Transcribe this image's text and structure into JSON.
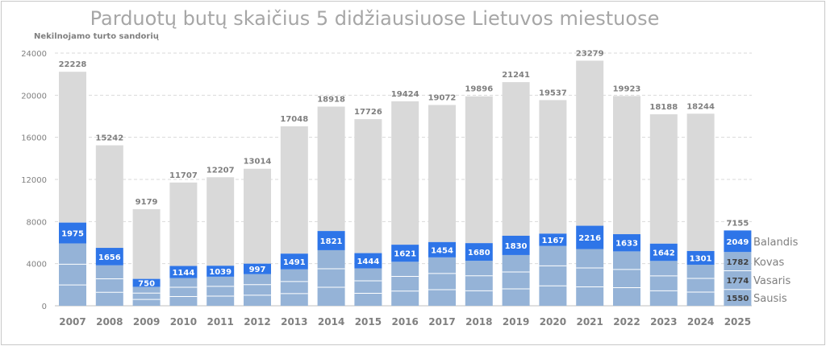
{
  "title": "Parduotų butų skaičius 5 didžiausiuose Lietuvos miestuose",
  "colors": {
    "total": "#d9d9d9",
    "latest_month": "#2e75e8",
    "earlier_months": "#95b3d7",
    "band_line": "#ffffff",
    "grid": "#d9d9d9",
    "axis_text": "#808080",
    "total_label": "#7f7f7f",
    "month_label": "#7f7f7f"
  },
  "chart_data": {
    "type": "bar",
    "ylabel": "Nekilnojamo turto sandorių",
    "xlabel": "",
    "ylim": [
      0,
      24000
    ],
    "yticks": [
      0,
      4000,
      8000,
      12000,
      16000,
      20000,
      24000
    ],
    "grid": true,
    "categories": [
      "2007",
      "2008",
      "2009",
      "2010",
      "2011",
      "2012",
      "2013",
      "2014",
      "2015",
      "2016",
      "2017",
      "2018",
      "2019",
      "2020",
      "2021",
      "2022",
      "2023",
      "2024",
      "2025"
    ],
    "series": [
      {
        "name": "",
        "role": "annual total",
        "values": [
          22228,
          15242,
          9179,
          11707,
          12207,
          13014,
          17048,
          18918,
          17726,
          19424,
          19072,
          19896,
          21241,
          19537,
          23279,
          19923,
          18188,
          18244,
          7155
        ]
      },
      {
        "name": "",
        "role": "January–April total",
        "values": [
          7900,
          5500,
          2550,
          3780,
          3800,
          4000,
          4950,
          7100,
          5000,
          5800,
          6050,
          5950,
          6650,
          6850,
          7600,
          6800,
          5900,
          5200,
          7155
        ]
      },
      {
        "name": "",
        "role": "April (labelled value)",
        "values": [
          1975,
          1656,
          750,
          1144,
          1039,
          997,
          1491,
          1821,
          1444,
          1621,
          1454,
          1680,
          1830,
          1167,
          2216,
          1633,
          1642,
          1301,
          2049
        ]
      }
    ],
    "latest_year_months": [
      {
        "name": "Sausis",
        "value": 1550
      },
      {
        "name": "Vasaris",
        "value": 1774
      },
      {
        "name": "Kovas",
        "value": 1782
      },
      {
        "name": "Balandis",
        "value": 2049
      }
    ]
  }
}
